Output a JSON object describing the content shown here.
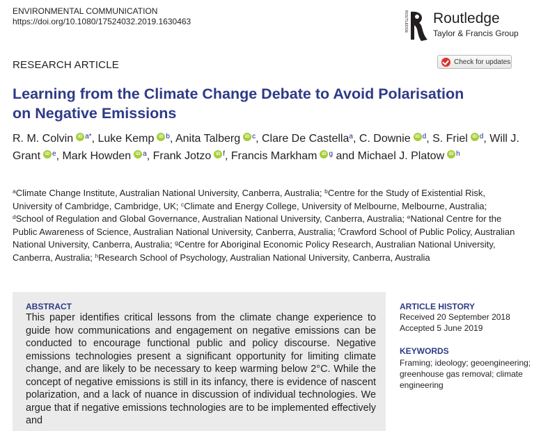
{
  "journal": {
    "name": "ENVIRONMENTAL COMMUNICATION",
    "doi": "https://doi.org/10.1080/17524032.2019.1630463"
  },
  "publisher": {
    "brand": "Routledge",
    "group": "Taylor & Francis Group",
    "spine_text": "ROUTLEDGE"
  },
  "article_type": "RESEARCH ARTICLE",
  "check_updates_label": "Check for updates",
  "title_lines": [
    "Learning from the Climate Change Debate to Avoid Polarisation",
    "on Negative Emissions"
  ],
  "authors": [
    {
      "name": "R. M. Colvin",
      "sup": "a*",
      "orcid": true
    },
    {
      "name": "Luke Kemp",
      "sup": "b",
      "orcid": true
    },
    {
      "name": "Anita Talberg",
      "sup": "c",
      "orcid": true
    },
    {
      "name": "Clare De Castella",
      "sup": "a",
      "orcid": false
    },
    {
      "name": "C. Downie",
      "sup": "d",
      "orcid": true
    },
    {
      "name": "S. Friel",
      "sup": "d",
      "orcid": true
    },
    {
      "name": "Will J. Grant",
      "sup": "e",
      "orcid": true
    },
    {
      "name": "Mark Howden",
      "sup": "a",
      "orcid": true
    },
    {
      "name": "Frank Jotzo",
      "sup": "f",
      "orcid": true
    },
    {
      "name": "Francis Markham",
      "sup": "g",
      "orcid": true
    },
    {
      "name": "Michael J. Platow",
      "sup": "h",
      "orcid": true
    }
  ],
  "orcid_label": "iD",
  "affiliations": [
    {
      "sup": "a",
      "text": "Climate Change Institute, Australian National University, Canberra, Australia; "
    },
    {
      "sup": "b",
      "text": "Centre for the Study of Existential Risk, University of Cambridge, Cambridge, UK; "
    },
    {
      "sup": "c",
      "text": "Climate and Energy College, University of Melbourne, Melbourne, Australia; "
    },
    {
      "sup": "d",
      "text": "School of Regulation and Global Governance, Australian National University, Canberra, Australia; "
    },
    {
      "sup": "e",
      "text": "National Centre for the Public Awareness of Science, Australian National University, Canberra, Australia; "
    },
    {
      "sup": "f",
      "text": "Crawford School of Public Policy, Australian National University, Canberra, Australia; "
    },
    {
      "sup": "g",
      "text": "Centre for Aboriginal Economic Policy Research, Australian National University, Canberra, Australia; "
    },
    {
      "sup": "h",
      "text": "Research School of Psychology, Australian National University, Canberra, Australia"
    }
  ],
  "abstract": {
    "heading": "ABSTRACT",
    "text": "This paper identifies critical lessons from the climate change experience to guide how communications and engagement on negative emissions can be conducted to encourage functional public and policy discourse. Negative emissions technologies present a significant opportunity for limiting climate change, and are likely to be necessary to keep warming below 2°C. While the concept of negative emissions is still in its infancy, there is evidence of nascent polarization, and a lack of nuance in discussion of individual technologies. We argue that if negative emissions technologies are to be implemented effectively and"
  },
  "article_history": {
    "heading": "ARTICLE HISTORY",
    "received": "Received 20 September 2018",
    "accepted": "Accepted 5 June 2019"
  },
  "keywords": {
    "heading": "KEYWORDS",
    "text": "Framing; ideology; geoengineering; greenhouse gas removal; climate engineering"
  },
  "colors": {
    "title_blue": "#2e3a87",
    "orcid_green": "#a6ce39",
    "abstract_bg": "#ebebeb"
  }
}
